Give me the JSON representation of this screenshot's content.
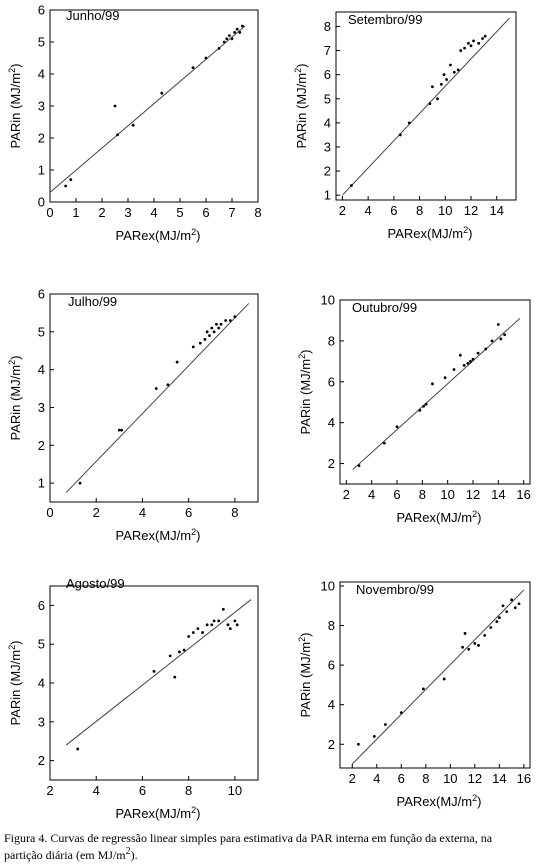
{
  "caption": {
    "line1": "Figura 4. Curvas de regressão linear simples para estimativa da PAR interna em função da externa, na",
    "line2_text": "partição diária (em MJ/m",
    "line2_sup": "2",
    "line2_end": ")."
  },
  "chart_data": [
    {
      "type": "scatter",
      "title": "Junho/99",
      "xlabel": "PARex(MJ/m2)",
      "ylabel": "PARin (MJ/m2)",
      "xlim": [
        0,
        8
      ],
      "ylim": [
        0,
        6
      ],
      "xticks": [
        0,
        1,
        2,
        3,
        4,
        5,
        6,
        7,
        8
      ],
      "yticks": [
        0,
        1,
        2,
        3,
        4,
        5,
        6
      ],
      "fit_line": {
        "x": [
          0,
          7.5
        ],
        "y": [
          0.3,
          5.5
        ]
      },
      "points": [
        [
          0.6,
          0.5
        ],
        [
          0.8,
          0.7
        ],
        [
          2.5,
          3.0
        ],
        [
          2.6,
          2.1
        ],
        [
          3.2,
          2.4
        ],
        [
          4.3,
          3.4
        ],
        [
          5.5,
          4.2
        ],
        [
          6.0,
          4.5
        ],
        [
          6.5,
          4.8
        ],
        [
          6.7,
          5.0
        ],
        [
          6.8,
          5.1
        ],
        [
          6.9,
          5.2
        ],
        [
          7.0,
          5.1
        ],
        [
          7.1,
          5.3
        ],
        [
          7.2,
          5.4
        ],
        [
          7.3,
          5.3
        ],
        [
          7.4,
          5.5
        ]
      ]
    },
    {
      "type": "scatter",
      "title": "Setembro/99",
      "xlabel": "PARex(MJ/m2)",
      "ylabel": "PARin (MJ/m2)",
      "xlim": [
        1.5,
        15.5
      ],
      "ylim": [
        0.8,
        8.6
      ],
      "xticks": [
        2,
        4,
        6,
        8,
        10,
        12,
        14
      ],
      "yticks": [
        1,
        2,
        3,
        4,
        5,
        6,
        7,
        8
      ],
      "fit_line": {
        "x": [
          2.0,
          15.0
        ],
        "y": [
          1.0,
          8.35
        ]
      },
      "points": [
        [
          2.7,
          1.4
        ],
        [
          6.5,
          3.5
        ],
        [
          7.2,
          4.0
        ],
        [
          8.8,
          4.8
        ],
        [
          9.0,
          5.5
        ],
        [
          9.4,
          5.0
        ],
        [
          9.7,
          5.6
        ],
        [
          9.9,
          6.0
        ],
        [
          10.1,
          5.8
        ],
        [
          10.4,
          6.4
        ],
        [
          10.7,
          6.1
        ],
        [
          11.0,
          6.2
        ],
        [
          11.2,
          7.0
        ],
        [
          11.5,
          7.1
        ],
        [
          11.8,
          7.3
        ],
        [
          12.0,
          7.2
        ],
        [
          12.2,
          7.4
        ],
        [
          12.6,
          7.3
        ],
        [
          12.9,
          7.5
        ],
        [
          13.1,
          7.6
        ]
      ]
    },
    {
      "type": "scatter",
      "title": "Julho/99",
      "xlabel": "PARex(MJ/m2)",
      "ylabel": "PARin (MJ/m2)",
      "xlim": [
        0,
        9
      ],
      "ylim": [
        0.5,
        6
      ],
      "xticks": [
        0,
        2,
        4,
        6,
        8
      ],
      "yticks": [
        1,
        2,
        3,
        4,
        5,
        6
      ],
      "fit_line": {
        "x": [
          0.7,
          8.6
        ],
        "y": [
          0.75,
          5.75
        ]
      },
      "points": [
        [
          1.3,
          1.0
        ],
        [
          3.0,
          2.4
        ],
        [
          3.1,
          2.4
        ],
        [
          4.6,
          3.5
        ],
        [
          5.1,
          3.6
        ],
        [
          5.5,
          4.2
        ],
        [
          6.2,
          4.6
        ],
        [
          6.5,
          4.7
        ],
        [
          6.7,
          4.8
        ],
        [
          6.8,
          5.0
        ],
        [
          6.9,
          4.9
        ],
        [
          7.0,
          5.1
        ],
        [
          7.1,
          5.0
        ],
        [
          7.2,
          5.2
        ],
        [
          7.3,
          5.1
        ],
        [
          7.4,
          5.2
        ],
        [
          7.6,
          5.3
        ],
        [
          7.8,
          5.3
        ],
        [
          8.0,
          5.4
        ]
      ]
    },
    {
      "type": "scatter",
      "title": "Outubro/99",
      "xlabel": "PARex(MJ/m2)",
      "ylabel": "PARin (MJ/m2)",
      "xlim": [
        1.5,
        16.5
      ],
      "ylim": [
        1,
        10
      ],
      "xticks": [
        2,
        4,
        6,
        8,
        10,
        12,
        14,
        16
      ],
      "yticks": [
        2,
        4,
        6,
        8,
        10
      ],
      "fit_line": {
        "x": [
          2.5,
          15.7
        ],
        "y": [
          1.7,
          9.1
        ]
      },
      "points": [
        [
          3.0,
          1.9
        ],
        [
          5.0,
          3.0
        ],
        [
          6.0,
          3.8
        ],
        [
          7.8,
          4.6
        ],
        [
          8.1,
          4.8
        ],
        [
          8.3,
          4.9
        ],
        [
          8.8,
          5.9
        ],
        [
          9.8,
          6.2
        ],
        [
          10.5,
          6.6
        ],
        [
          11.0,
          7.3
        ],
        [
          11.3,
          6.8
        ],
        [
          11.6,
          6.9
        ],
        [
          11.8,
          7.0
        ],
        [
          12.0,
          7.1
        ],
        [
          12.4,
          7.4
        ],
        [
          13.0,
          7.6
        ],
        [
          13.5,
          8.0
        ],
        [
          14.0,
          8.8
        ],
        [
          14.2,
          8.1
        ],
        [
          14.5,
          8.3
        ]
      ]
    },
    {
      "type": "scatter",
      "title": "Agosto/99",
      "xlabel": "PARex(MJ/m2)",
      "ylabel": "PARin (MJ/m2)",
      "xlim": [
        2,
        11
      ],
      "ylim": [
        1.5,
        6.5
      ],
      "xticks": [
        2,
        4,
        6,
        8,
        10
      ],
      "yticks": [
        2,
        3,
        4,
        5,
        6
      ],
      "fit_line": {
        "x": [
          2.7,
          10.7
        ],
        "y": [
          2.4,
          6.15
        ]
      },
      "points": [
        [
          3.2,
          2.3
        ],
        [
          6.5,
          4.3
        ],
        [
          7.2,
          4.7
        ],
        [
          7.4,
          4.15
        ],
        [
          7.6,
          4.8
        ],
        [
          7.8,
          4.85
        ],
        [
          8.0,
          5.2
        ],
        [
          8.2,
          5.3
        ],
        [
          8.4,
          5.4
        ],
        [
          8.6,
          5.3
        ],
        [
          8.8,
          5.5
        ],
        [
          9.0,
          5.5
        ],
        [
          9.1,
          5.6
        ],
        [
          9.3,
          5.6
        ],
        [
          9.5,
          5.9
        ],
        [
          9.7,
          5.5
        ],
        [
          9.8,
          5.4
        ],
        [
          10.0,
          5.6
        ],
        [
          10.1,
          5.5
        ]
      ]
    },
    {
      "type": "scatter",
      "title": "Novembro/99",
      "xlabel": "PARex(MJ/m2)",
      "ylabel": "PARin (MJ/m2)",
      "xlim": [
        1,
        16.5
      ],
      "ylim": [
        0.8,
        10.2
      ],
      "xticks": [
        2,
        4,
        6,
        8,
        10,
        12,
        14,
        16
      ],
      "yticks": [
        2,
        4,
        6,
        8,
        10
      ],
      "fit_line": {
        "x": [
          2.0,
          16.0
        ],
        "y": [
          1.0,
          9.8
        ]
      },
      "points": [
        [
          2.5,
          2.0
        ],
        [
          3.8,
          2.4
        ],
        [
          4.7,
          3.0
        ],
        [
          6.0,
          3.6
        ],
        [
          7.8,
          4.8
        ],
        [
          9.5,
          5.3
        ],
        [
          11.0,
          6.9
        ],
        [
          11.2,
          7.6
        ],
        [
          11.5,
          6.8
        ],
        [
          12.0,
          7.1
        ],
        [
          12.3,
          7.0
        ],
        [
          12.8,
          7.5
        ],
        [
          13.3,
          7.9
        ],
        [
          13.8,
          8.2
        ],
        [
          14.0,
          8.4
        ],
        [
          14.3,
          9.0
        ],
        [
          14.6,
          8.7
        ],
        [
          15.0,
          9.3
        ],
        [
          15.3,
          8.9
        ],
        [
          15.6,
          9.1
        ]
      ]
    }
  ]
}
